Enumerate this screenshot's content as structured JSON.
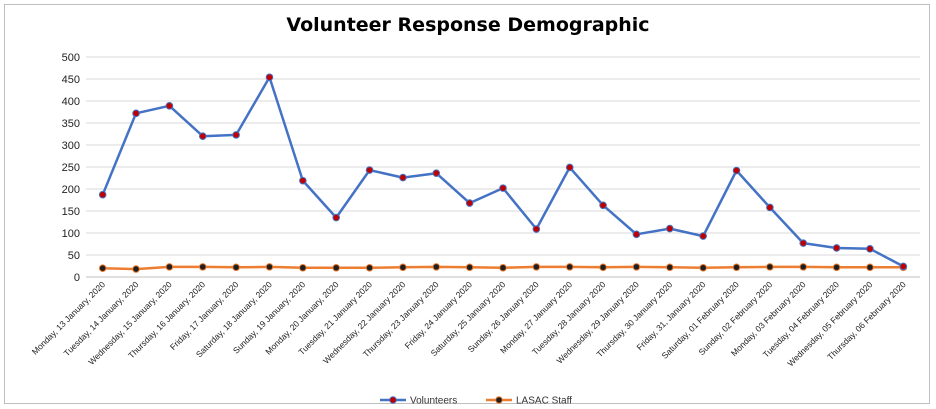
{
  "chart_data": {
    "type": "line",
    "title": "Volunteer Response Demographic",
    "xlabel": "",
    "ylabel": "",
    "ylim": [
      0,
      500
    ],
    "y_ticks": [
      0,
      50,
      100,
      150,
      200,
      250,
      300,
      350,
      400,
      450,
      500
    ],
    "grid": true,
    "legend_position": "bottom",
    "categories": [
      "Monday, 13 January, 2020",
      "Tuesday, 14 January, 2020",
      "Wednesday, 15 January, 2020",
      "Thursday, 16 January, 2020",
      "Friday, 17 January, 2020",
      "Saturday, 18 January, 2020",
      "Sunday, 19 January, 2020",
      "Monday, 20 January, 2020",
      "Tuesday, 21 January 2020",
      "Wednesday, 22 January 2020",
      "Thursday, 23 January 2020",
      "Friday, 24 January 2020",
      "Saturday, 25 January 2020",
      "Sunday, 26 January 2020",
      "Monday, 27 January 2020",
      "Tuesday, 28 January 2020",
      "Wednesday, 29 January 2020",
      "Thursday, 30 January 2020",
      "Friday, 31, January 2020",
      "Saturday, 01 February 2020",
      "Sunday, 02 February 2020",
      "Monday, 03 February 2020",
      "Tuesday, 04 February 2020",
      "Wednesday, 05 February 2020",
      "Thursday, 06 February 2020"
    ],
    "series": [
      {
        "name": "Volunteers",
        "color": "#4472c4",
        "marker_color": "#c00000",
        "values": [
          187,
          372,
          389,
          320,
          323,
          454,
          219,
          135,
          243,
          226,
          236,
          168,
          202,
          109,
          249,
          163,
          97,
          110,
          93,
          242,
          158,
          77,
          66,
          64,
          24
        ]
      },
      {
        "name": "LASAC Staff",
        "color": "#ed7d31",
        "marker_color": "#1f1f1f",
        "values": [
          20,
          18,
          23,
          23,
          22,
          23,
          21,
          21,
          21,
          22,
          23,
          22,
          21,
          23,
          23,
          22,
          23,
          22,
          21,
          22,
          23,
          23,
          22,
          22,
          22
        ]
      }
    ]
  }
}
